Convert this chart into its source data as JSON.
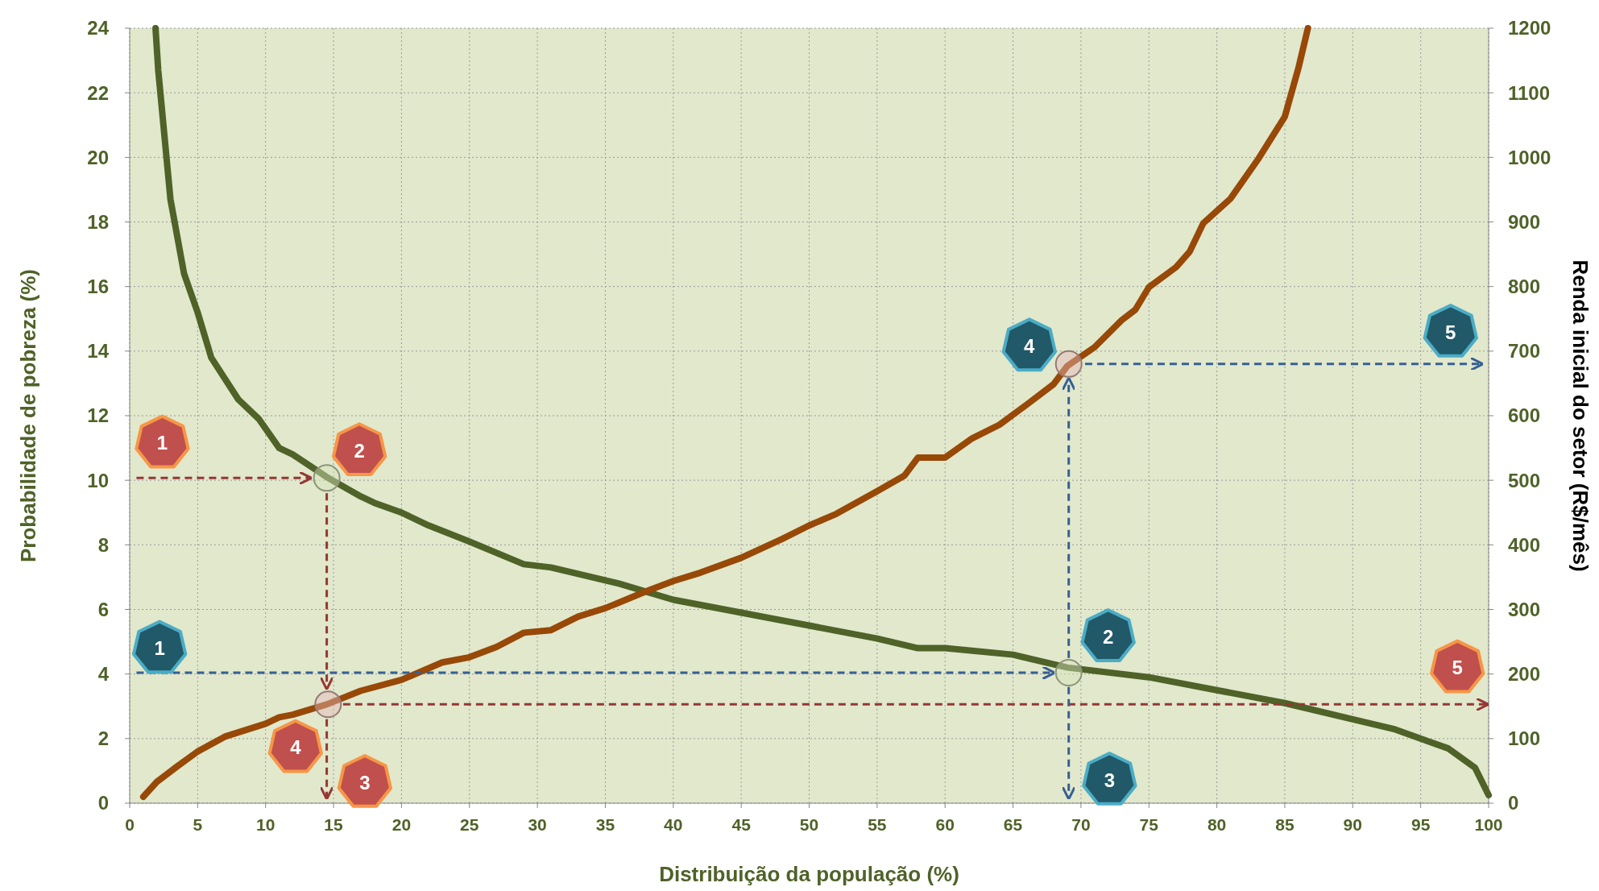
{
  "chart_data": {
    "type": "line",
    "xlabel": "Distribuição da população (%)",
    "ylabel": "Probabilidade de pobreza (%)",
    "y2label": "Renda inicial do setor (R$/mês)",
    "xlim": [
      0,
      100
    ],
    "xticks": [
      0,
      5,
      10,
      15,
      20,
      25,
      30,
      35,
      40,
      45,
      50,
      55,
      60,
      65,
      70,
      75,
      80,
      85,
      90,
      95,
      100
    ],
    "ylim": [
      0,
      24
    ],
    "yticks": [
      0,
      2,
      4,
      6,
      8,
      10,
      12,
      14,
      16,
      18,
      20,
      22,
      24
    ],
    "y2lim": [
      0,
      1200
    ],
    "y2ticks": [
      0,
      100,
      200,
      300,
      400,
      500,
      600,
      700,
      800,
      900,
      1000,
      1100,
      1200
    ],
    "grid": true,
    "series": [
      {
        "type": "line",
        "color": "#4f6228",
        "x": [
          1.9,
          2.1,
          3,
          4,
          5,
          6,
          8,
          9.5,
          11,
          12,
          14.5,
          17,
          18,
          20,
          22,
          25,
          29,
          31,
          33,
          36,
          40,
          45,
          50,
          55,
          58,
          60,
          65,
          69,
          75,
          80,
          85,
          90,
          93,
          97,
          99,
          100
        ],
        "values": [
          24,
          22.7,
          18.7,
          16.4,
          15.2,
          13.8,
          12.5,
          11.9,
          11,
          10.8,
          10.1,
          9.5,
          9.3,
          9,
          8.6,
          8.1,
          7.4,
          7.3,
          7.1,
          6.8,
          6.3,
          5.9,
          5.5,
          5.1,
          4.8,
          4.8,
          4.6,
          4.2,
          3.9,
          3.5,
          3.1,
          2.6,
          2.3,
          1.7,
          1.1,
          0.25
        ]
      },
      {
        "type": "line",
        "axis": "y2",
        "color": "#984807",
        "x": [
          1,
          2,
          3.5,
          5,
          7,
          10,
          11,
          12,
          14.5,
          17,
          20,
          23,
          25,
          27,
          29,
          31,
          33,
          35,
          38,
          40,
          42,
          45,
          48,
          50,
          52,
          55,
          57,
          58,
          60,
          62,
          64,
          66,
          68,
          69,
          71,
          73,
          74,
          75,
          77,
          78,
          79,
          81,
          83,
          85,
          86,
          86.7
        ],
        "values": [
          10,
          33,
          57,
          80,
          103,
          123,
          133,
          137,
          153,
          174,
          191,
          218,
          226,
          242,
          264,
          268,
          289,
          302,
          328,
          344,
          357,
          380,
          409,
          430,
          448,
          483,
          507,
          535,
          535,
          565,
          586,
          617,
          649,
          677,
          706,
          748,
          764,
          799,
          830,
          854,
          898,
          936,
          996,
          1063,
          1138,
          1200
        ]
      },
      {
        "type": "line",
        "line_style": "dashed",
        "color": "#953735",
        "x": [
          0.5,
          13.2
        ],
        "values": [
          10.07,
          10.07
        ]
      },
      {
        "type": "line",
        "line_style": "dashed",
        "color": "#953735",
        "x": [
          14.5,
          14.5
        ],
        "values": [
          9.6,
          3.6
        ]
      },
      {
        "type": "line",
        "line_style": "dashed",
        "color": "#953735",
        "x": [
          14.5,
          14.5
        ],
        "values": [
          2.6,
          0.2
        ]
      },
      {
        "type": "line",
        "line_style": "dashed",
        "color": "#953735",
        "x": [
          15.7,
          99.8
        ],
        "values": [
          3.06,
          3.06
        ]
      },
      {
        "type": "line",
        "line_style": "dashed",
        "color": "#376092",
        "x": [
          0.5,
          67.9
        ],
        "values": [
          4.04,
          4.04
        ]
      },
      {
        "type": "line",
        "line_style": "dashed",
        "color": "#376092",
        "x": [
          69.1,
          69.1
        ],
        "values": [
          3.6,
          0.2
        ]
      },
      {
        "type": "line",
        "line_style": "dashed",
        "color": "#376092",
        "x": [
          69.1,
          69.1
        ],
        "values": [
          4.5,
          13.1
        ]
      },
      {
        "type": "line",
        "line_style": "dashed",
        "color": "#376092",
        "x": [
          70.3,
          99.4
        ],
        "values": [
          13.6,
          13.6
        ]
      },
      {
        "type": "scatter",
        "marker": "circle",
        "color": "#d7e4bd",
        "x": [
          14.5,
          69.1
        ],
        "values": [
          10.07,
          4.04
        ]
      },
      {
        "type": "scatter",
        "marker": "circle",
        "color": "#e6b9b8",
        "x": [
          14.6,
          69.1
        ],
        "values": [
          3.06,
          13.6
        ]
      }
    ],
    "annotations": [
      "1",
      "2",
      "3",
      "4",
      "5",
      "1",
      "2",
      "3",
      "4",
      "5"
    ]
  }
}
